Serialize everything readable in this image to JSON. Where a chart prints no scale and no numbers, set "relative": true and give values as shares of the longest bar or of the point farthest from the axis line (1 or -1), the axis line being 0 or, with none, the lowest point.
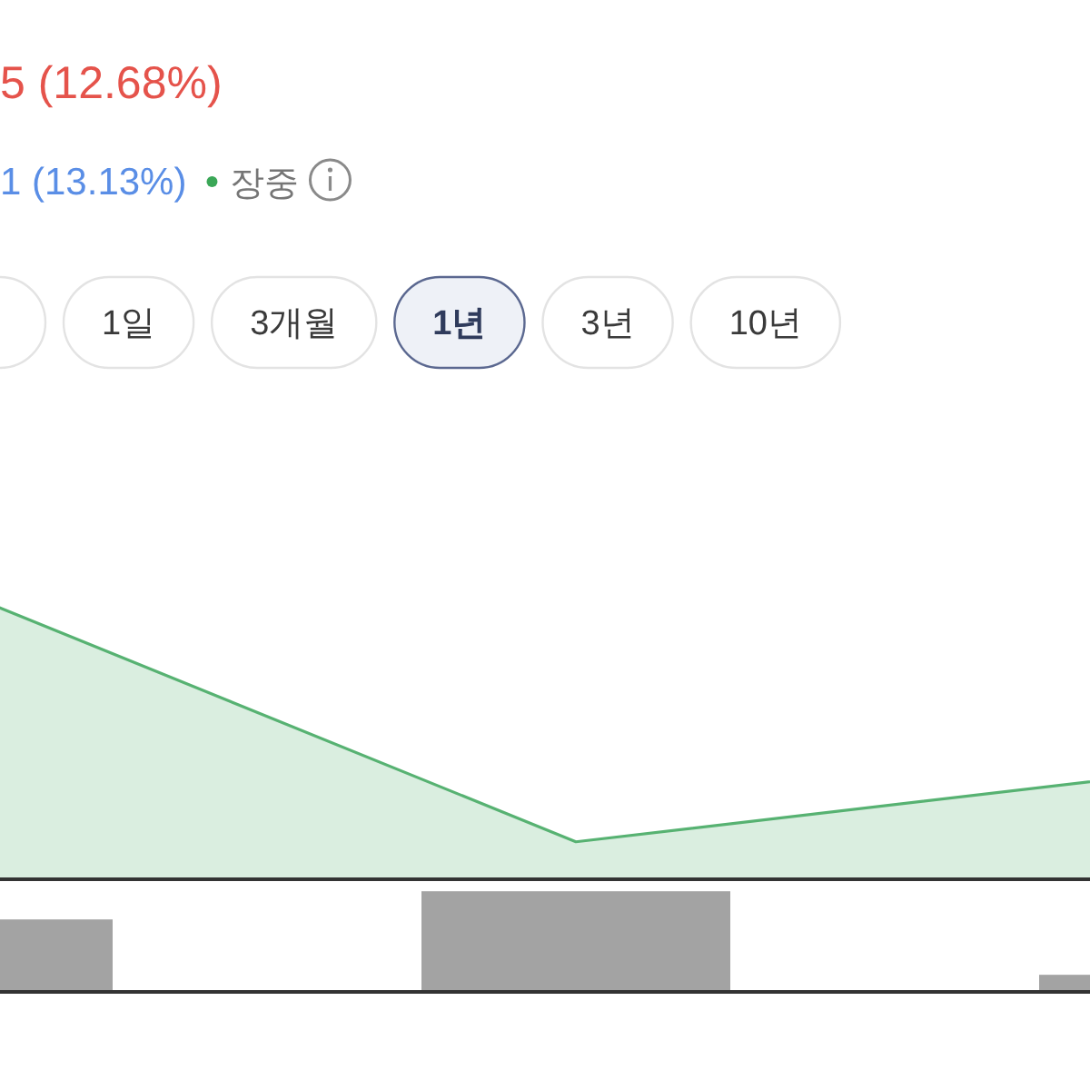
{
  "chart_data": [
    {
      "type": "area",
      "title": "5 (12.68%)",
      "subtitle": "1 (13.13%)",
      "annotations": [
        "장중",
        "1일",
        "3개월",
        "1년",
        "3년",
        "10년"
      ],
      "categories": [
        null,
        null,
        null
      ],
      "values": [
        1,
        0.13,
        0.38
      ],
      "color": "#57b272",
      "relative": true
    },
    {
      "type": "bar",
      "categories": [
        null,
        null,
        null
      ],
      "values": [
        0.72,
        1,
        0.17
      ],
      "color": "#a3a3a3",
      "relative": true
    }
  ]
}
